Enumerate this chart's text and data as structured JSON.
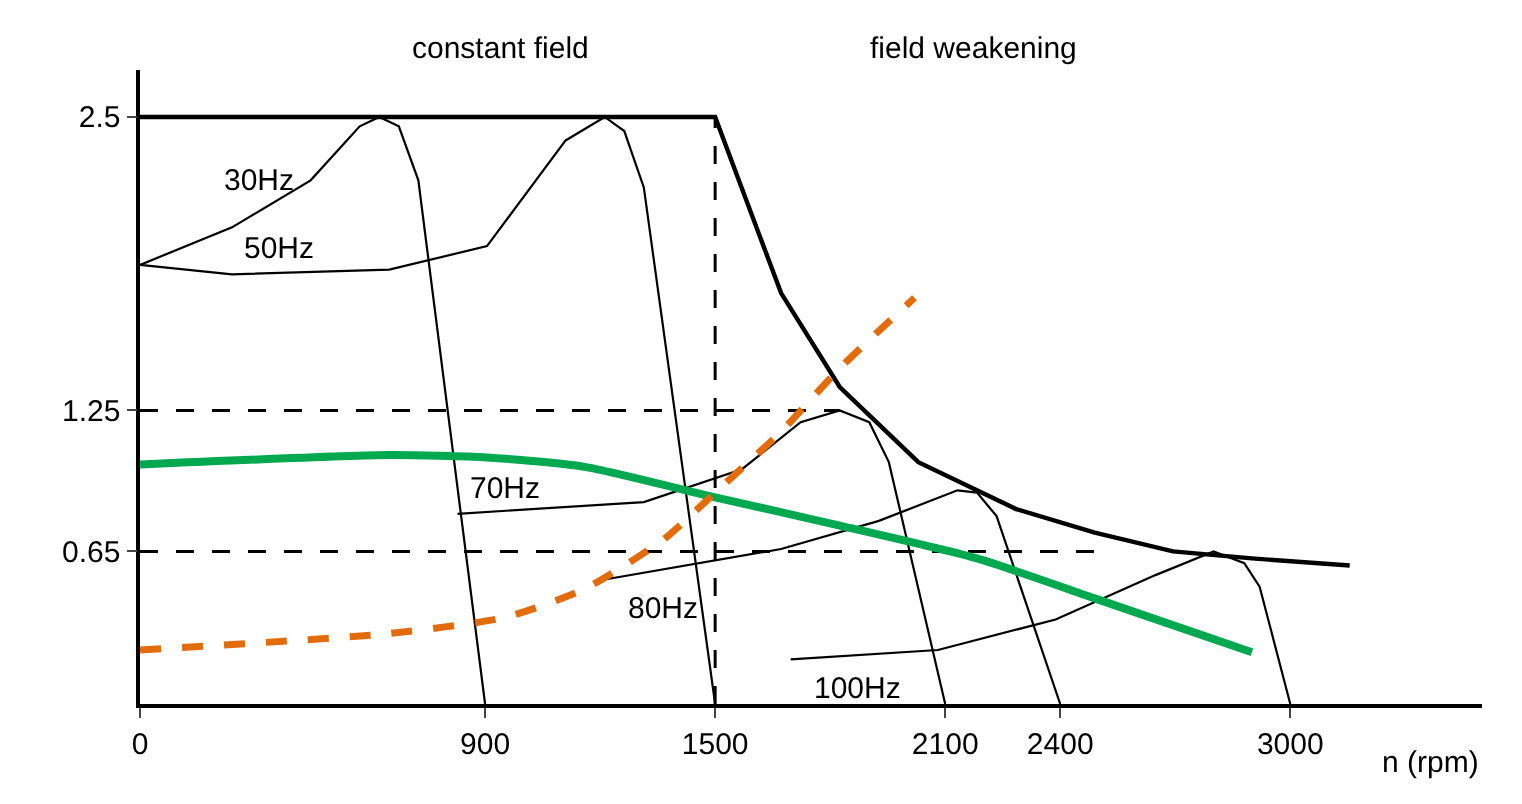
{
  "chart_data": {
    "type": "line",
    "xlabel": "n (rpm)",
    "annotations": [
      "constant field",
      "field weakening",
      {
        "text": "30Hz",
        "x": 445,
        "y": 2.23
      },
      {
        "text": "50Hz",
        "x": 240,
        "y": 1.83
      },
      {
        "text": "70Hz",
        "x": 828,
        "y": 0.81
      },
      {
        "text": "80Hz",
        "x": 1212,
        "y": 0.53
      },
      {
        "text": "100Hz",
        "x": 1697,
        "y": 0.19
      }
    ],
    "xlim": [
      0,
      3500
    ],
    "ylim": [
      0,
      2.7
    ],
    "xticks": [
      0,
      900,
      1500,
      2100,
      2400,
      3000
    ],
    "yticks": [
      0.65,
      1.25,
      2.5
    ],
    "marker": "none",
    "series": [
      {
        "color": "#000000",
        "x": [
          0,
          1500,
          1672,
          1825,
          2030,
          2285,
          2490,
          2694,
          2900,
          3155
        ],
        "values": [
          2.5,
          2.5,
          1.75,
          1.35,
          1.03,
          0.83,
          0.73,
          0.65,
          0.62,
          0.59
        ]
      },
      {
        "color": "#000000",
        "line_style": "dashed",
        "x": [
          1500,
          1500
        ],
        "values": [
          0,
          2.5
        ]
      },
      {
        "color": "#000000",
        "line_style": "dashed",
        "x": [
          0,
          1825
        ],
        "values": [
          1.25,
          1.25
        ]
      },
      {
        "color": "#000000",
        "line_style": "dashed",
        "x": [
          0,
          2490
        ],
        "values": [
          0.65,
          0.65
        ]
      },
      {
        "color": "#000000",
        "x": [
          0,
          240,
          445,
          573,
          624,
          675,
          726,
          900
        ],
        "values": [
          1.87,
          2.03,
          2.23,
          2.46,
          2.5,
          2.46,
          2.23,
          0
        ]
      },
      {
        "color": "#000000",
        "x": [
          0,
          240,
          650,
          905,
          1110,
          1212,
          1263,
          1314,
          1500
        ],
        "values": [
          1.87,
          1.83,
          1.85,
          1.95,
          2.4,
          2.5,
          2.44,
          2.2,
          0
        ]
      },
      {
        "color": "#000000",
        "x": [
          828,
          1314,
          1570,
          1723,
          1825,
          1902,
          1953,
          2100
        ],
        "values": [
          0.81,
          0.86,
          1.0,
          1.2,
          1.25,
          1.2,
          1.03,
          0
        ]
      },
      {
        "color": "#000000",
        "x": [
          1212,
          1672,
          1927,
          2132,
          2183,
          2234,
          2400
        ],
        "values": [
          0.53,
          0.66,
          0.78,
          0.91,
          0.9,
          0.8,
          0
        ]
      },
      {
        "color": "#000000",
        "x": [
          1697,
          2081,
          2388,
          2650,
          2800,
          2880,
          2920,
          3000
        ],
        "values": [
          0.19,
          0.23,
          0.36,
          0.55,
          0.65,
          0.6,
          0.5,
          0
        ]
      },
      {
        "color": "#00a84f",
        "x": [
          0,
          650,
          905,
          1160,
          1500,
          1825,
          2183,
          2490,
          2900
        ],
        "values": [
          1.02,
          1.06,
          1.05,
          1.01,
          0.88,
          0.76,
          0.62,
          0.45,
          0.22
        ]
      },
      {
        "color": "#e36c0a",
        "line_style": "dashed",
        "x": [
          0,
          650,
          955,
          1160,
          1365,
          1500,
          1672,
          1825,
          2020
        ],
        "values": [
          0.23,
          0.3,
          0.37,
          0.49,
          0.7,
          0.9,
          1.16,
          1.43,
          1.73
        ]
      }
    ]
  }
}
